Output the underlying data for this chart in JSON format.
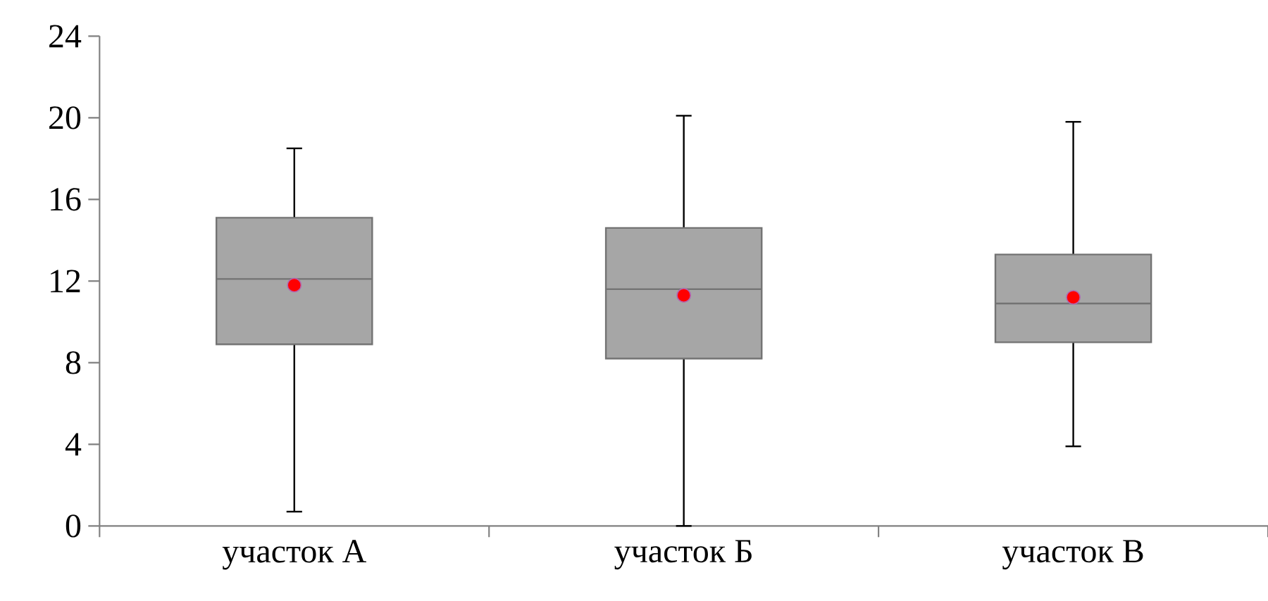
{
  "chart_data": {
    "type": "box",
    "categories": [
      "участок А",
      "участок Б",
      "участок В"
    ],
    "color": "#a6a6a6",
    "boxes": [
      {
        "low": 0.7,
        "q1": 8.9,
        "median": 12.1,
        "q3": 15.1,
        "high": 18.5,
        "mean": 11.8
      },
      {
        "low": 0,
        "q1": 8.2,
        "median": 11.6,
        "q3": 14.6,
        "high": 20.1,
        "mean": 11.3
      },
      {
        "low": 3.9,
        "q1": 9,
        "median": 10.9,
        "q3": 13.3,
        "high": 19.8,
        "mean": 11.2
      }
    ],
    "ylim": [
      0,
      24
    ],
    "yticks": [
      0,
      4,
      8,
      12,
      16,
      20,
      24
    ]
  }
}
